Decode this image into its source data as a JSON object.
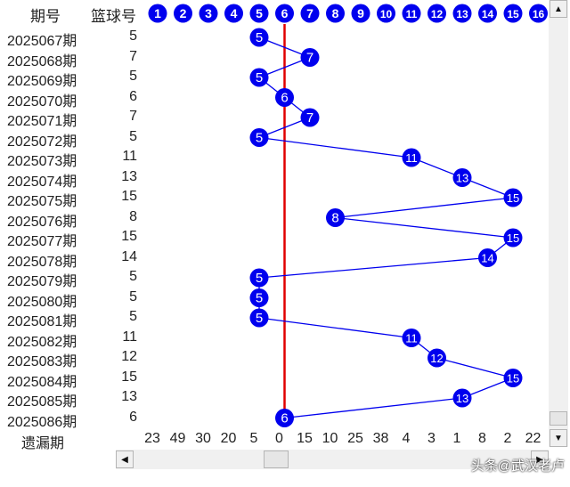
{
  "header": {
    "period_label": "期号",
    "ball_label": "篮球号"
  },
  "footer": {
    "omission_label": "遗漏期"
  },
  "watermark": "头条@武汉老卢",
  "colors": {
    "ball": "#0000ee",
    "line": "#0000ee",
    "center_line": "#e00000"
  },
  "chart_data": {
    "type": "line",
    "column_numbers": [
      1,
      2,
      3,
      4,
      5,
      6,
      7,
      8,
      9,
      10,
      11,
      12,
      13,
      14,
      15,
      16
    ],
    "highlight_column": 6,
    "periods": [
      "2025067期",
      "2025068期",
      "2025069期",
      "2025070期",
      "2025071期",
      "2025072期",
      "2025073期",
      "2025074期",
      "2025075期",
      "2025076期",
      "2025077期",
      "2025078期",
      "2025079期",
      "2025080期",
      "2025081期",
      "2025082期",
      "2025083期",
      "2025084期",
      "2025085期",
      "2025086期"
    ],
    "values": [
      5,
      7,
      5,
      6,
      7,
      5,
      11,
      13,
      15,
      8,
      15,
      14,
      5,
      5,
      5,
      11,
      12,
      15,
      13,
      6
    ],
    "omissions": [
      23,
      49,
      30,
      20,
      5,
      0,
      15,
      10,
      25,
      38,
      4,
      3,
      1,
      8,
      2,
      22
    ]
  }
}
